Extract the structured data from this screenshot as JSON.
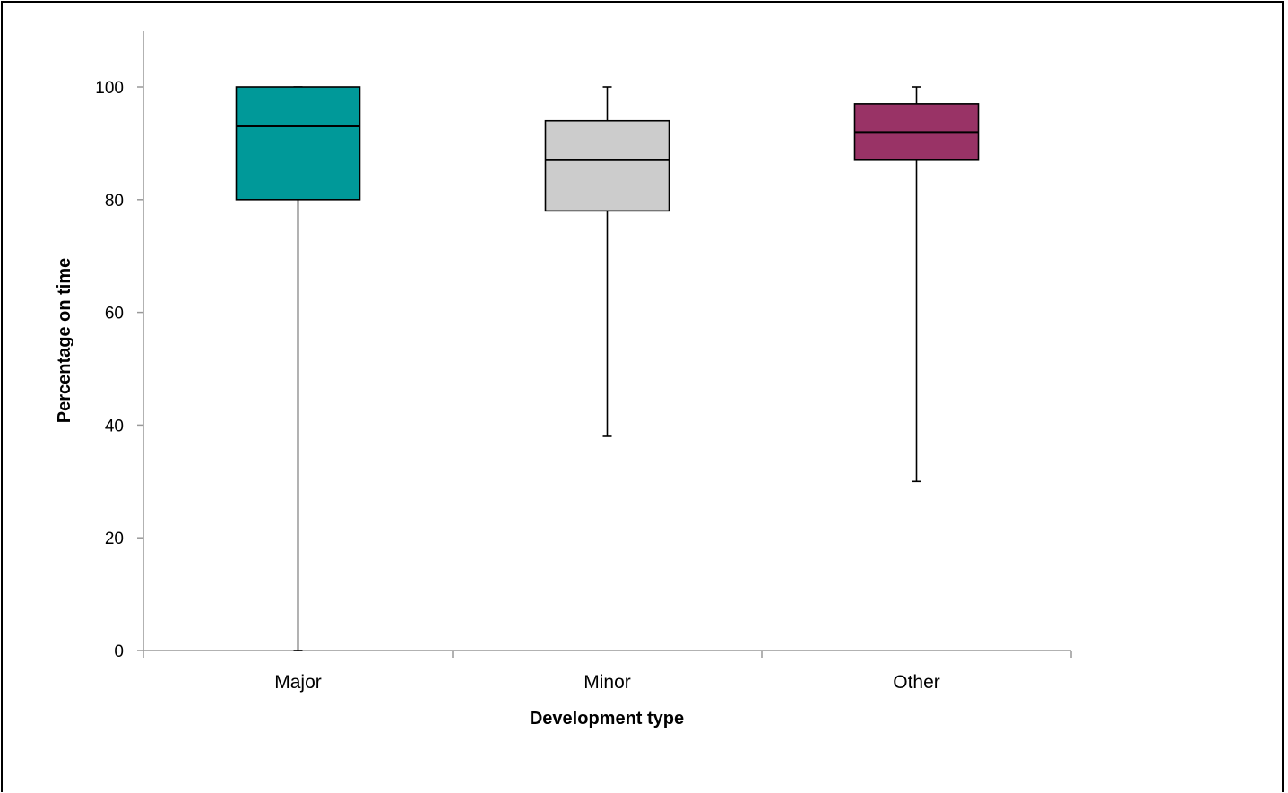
{
  "chart_data": {
    "type": "boxplot",
    "title": "",
    "xlabel": "Development type",
    "ylabel": "Percentage on time",
    "ylim": [
      0,
      110
    ],
    "yticks": [
      0,
      20,
      40,
      60,
      80,
      100
    ],
    "grid": false,
    "legend": "none",
    "categories": [
      "Major",
      "Minor",
      "Other"
    ],
    "boxes": [
      {
        "category": "Major",
        "min": 0,
        "q1": 80,
        "median": 93,
        "q3": 100,
        "max": 100,
        "color": "#009999"
      },
      {
        "category": "Minor",
        "min": 38,
        "q1": 78,
        "median": 87,
        "q3": 94,
        "max": 100,
        "color": "#cccccc"
      },
      {
        "category": "Other",
        "min": 30,
        "q1": 87,
        "median": 92,
        "q3": 97,
        "max": 100,
        "color": "#993366"
      }
    ]
  }
}
